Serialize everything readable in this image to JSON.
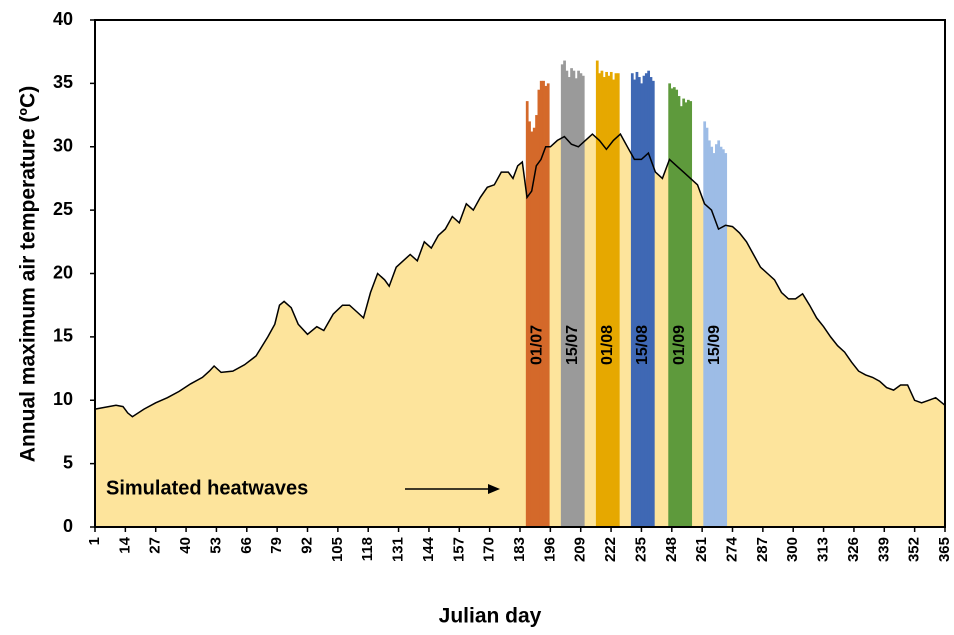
{
  "chart_data": {
    "type": "area",
    "y_label": "Annual maximum air temperature (ºC)",
    "x_label": "Julian day",
    "annotation": "Simulated heatwaves",
    "xlim": [
      1,
      365
    ],
    "xticks": [
      1,
      14,
      27,
      40,
      53,
      66,
      79,
      92,
      105,
      118,
      131,
      144,
      157,
      170,
      183,
      196,
      209,
      222,
      235,
      248,
      261,
      274,
      287,
      300,
      313,
      326,
      339,
      352,
      365
    ],
    "ylim": [
      0,
      40
    ],
    "yticks": [
      0,
      5,
      10,
      15,
      20,
      25,
      30,
      35,
      40
    ],
    "series": [
      {
        "color": "#fde49c",
        "line_color": "#000000",
        "x": [
          1,
          10,
          13,
          15,
          17,
          22,
          27,
          32,
          37,
          42,
          47,
          50,
          52,
          55,
          60,
          65,
          70,
          75,
          78,
          80,
          82,
          85,
          88,
          92,
          96,
          99,
          103,
          107,
          110,
          113,
          116,
          119,
          122,
          125,
          127,
          130,
          133,
          136,
          139,
          142,
          145,
          148,
          151,
          154,
          157,
          160,
          163,
          166,
          169,
          172,
          175,
          178,
          180,
          182,
          184,
          186,
          188,
          190,
          192,
          194,
          196,
          199,
          202,
          205,
          208,
          211,
          214,
          217,
          220,
          223,
          226,
          229,
          232,
          235,
          238,
          241,
          244,
          247,
          250,
          253,
          256,
          259,
          262,
          265,
          268,
          271,
          274,
          277,
          280,
          283,
          286,
          289,
          292,
          295,
          298,
          301,
          304,
          307,
          310,
          313,
          316,
          319,
          322,
          325,
          328,
          331,
          334,
          337,
          340,
          343,
          346,
          349,
          352,
          355,
          358,
          361,
          365
        ],
        "values": [
          9.3,
          9.6,
          9.5,
          9.0,
          8.7,
          9.3,
          9.8,
          10.2,
          10.7,
          11.3,
          11.8,
          12.3,
          12.7,
          12.2,
          12.3,
          12.8,
          13.5,
          15.0,
          16.0,
          17.5,
          17.8,
          17.3,
          16.0,
          15.2,
          15.8,
          15.5,
          16.8,
          17.5,
          17.5,
          17.0,
          16.5,
          18.5,
          20.0,
          19.5,
          19.0,
          20.5,
          21.0,
          21.5,
          21.0,
          22.5,
          22.0,
          23.0,
          23.5,
          24.5,
          24.0,
          25.5,
          25.0,
          26.0,
          26.8,
          27.0,
          28.0,
          28.0,
          27.5,
          28.5,
          28.8,
          26.0,
          26.5,
          28.5,
          29.0,
          30.0,
          30.0,
          30.5,
          30.8,
          30.2,
          30.0,
          30.5,
          31.0,
          30.5,
          29.8,
          30.5,
          31.0,
          30.0,
          29.0,
          29.0,
          29.5,
          28.0,
          27.5,
          29.0,
          28.5,
          28.0,
          27.5,
          27.0,
          25.5,
          25.0,
          23.5,
          23.8,
          23.7,
          23.2,
          22.5,
          21.5,
          20.5,
          20.0,
          19.5,
          18.5,
          18.0,
          18.0,
          18.4,
          17.5,
          16.5,
          15.8,
          15.0,
          14.3,
          13.8,
          13.0,
          12.3,
          12.0,
          11.8,
          11.5,
          11.0,
          10.8,
          11.2,
          11.2,
          10.0,
          9.8,
          10.0,
          10.2,
          9.6
        ]
      }
    ],
    "bars": [
      {
        "type": "bar",
        "name": "01/07",
        "color": "#d4692a",
        "x": [
          186,
          187,
          188,
          189,
          190,
          191,
          192,
          193,
          194,
          195
        ],
        "values": [
          33.6,
          32.0,
          31.2,
          31.5,
          32.5,
          34.5,
          35.2,
          35.2,
          34.8,
          35.0
        ]
      },
      {
        "type": "bar",
        "name": "15/07",
        "color": "#9a9a9a",
        "x": [
          201,
          202,
          203,
          204,
          205,
          206,
          207,
          208,
          209,
          210
        ],
        "values": [
          36.5,
          36.8,
          36.0,
          35.5,
          36.2,
          36.0,
          35.4,
          36.0,
          35.8,
          35.6
        ]
      },
      {
        "type": "bar",
        "name": "01/08",
        "color": "#e6a800",
        "x": [
          216,
          217,
          218,
          219,
          220,
          221,
          222,
          223,
          224,
          225
        ],
        "values": [
          36.8,
          35.8,
          36.0,
          35.5,
          35.9,
          35.6,
          35.9,
          35.3,
          35.8,
          35.8
        ]
      },
      {
        "type": "bar",
        "name": "15/08",
        "color": "#3f68b4",
        "x": [
          231,
          232,
          233,
          234,
          235,
          236,
          237,
          238,
          239,
          240
        ],
        "values": [
          35.8,
          35.3,
          35.9,
          35.5,
          35.0,
          35.6,
          35.8,
          36.0,
          35.5,
          35.2
        ]
      },
      {
        "type": "bar",
        "name": "01/09",
        "color": "#5e9a3c",
        "x": [
          247,
          248,
          249,
          250,
          251,
          252,
          253,
          254,
          255,
          256
        ],
        "values": [
          35.0,
          34.6,
          34.7,
          34.5,
          34.0,
          33.2,
          33.8,
          33.5,
          33.7,
          33.6
        ]
      },
      {
        "type": "bar",
        "name": "15/09",
        "color": "#9dbce6",
        "x": [
          262,
          263,
          264,
          265,
          266,
          267,
          268,
          269,
          270,
          271
        ],
        "values": [
          32.0,
          31.5,
          30.5,
          30.0,
          29.5,
          30.2,
          30.5,
          30.0,
          29.8,
          29.5
        ]
      }
    ]
  }
}
